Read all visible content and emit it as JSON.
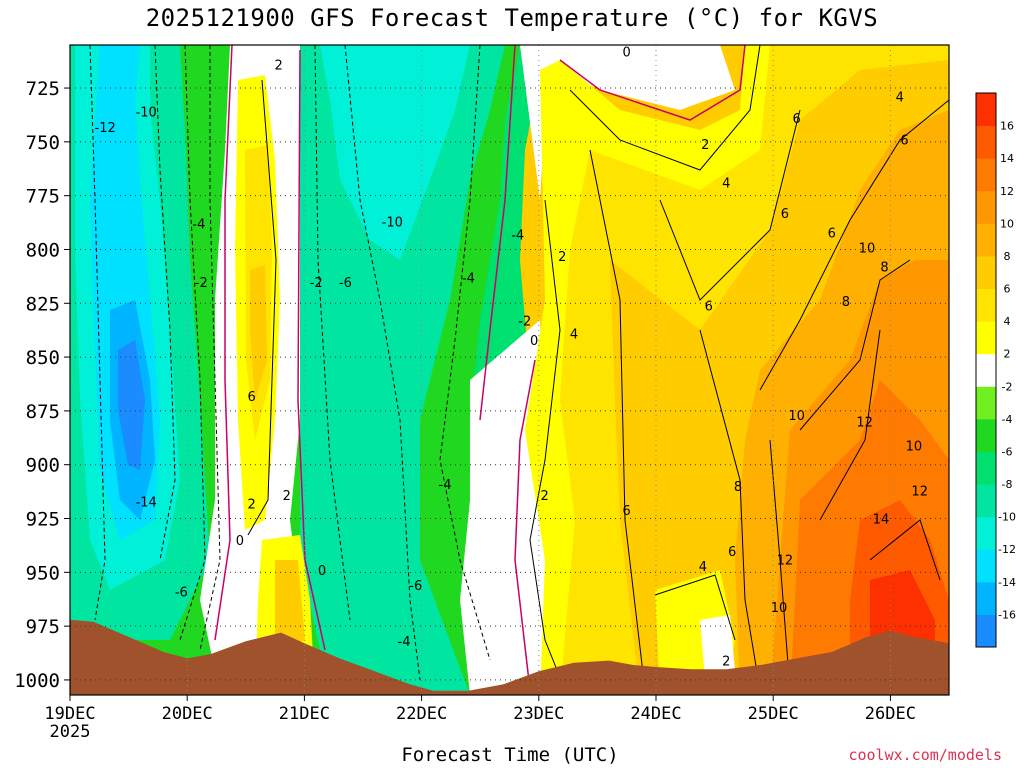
{
  "title": "2025121900 GFS Forecast Temperature (°C) for KGVS",
  "credit": "coolwx.com/models",
  "chart_data": {
    "type": "heatmap",
    "title": "2025121900 GFS Forecast Temperature (°C) for KGVS",
    "xlabel": "Forecast Time (UTC)",
    "ylabel": "",
    "x_ticks": [
      "19DEC",
      "20DEC",
      "21DEC",
      "22DEC",
      "23DEC",
      "24DEC",
      "25DEC",
      "26DEC"
    ],
    "x_tick_year": "2025",
    "xlim_days": [
      19,
      26.5
    ],
    "y_ticks": [
      725,
      750,
      775,
      800,
      825,
      850,
      875,
      900,
      925,
      950,
      975,
      1000
    ],
    "ylim": [
      1007,
      705
    ],
    "grid": true,
    "colorbar": {
      "levels": [
        -18,
        -16,
        -14,
        -12,
        -10,
        -8,
        -6,
        -4,
        -2,
        2,
        4,
        6,
        8,
        10,
        12,
        14,
        16,
        18
      ],
      "labels": [
        "-16",
        "-14",
        "-12",
        "-10",
        "-8",
        "-6",
        "-4",
        "-2",
        "2",
        "4",
        "6",
        "8",
        "10",
        "12",
        "14",
        "16"
      ],
      "colors": [
        "#1a8cff",
        "#00b4ff",
        "#00e0ff",
        "#00f0d8",
        "#00e6a0",
        "#00e070",
        "#20d820",
        "#70f020",
        "#ffffff",
        "#ffff00",
        "#ffe400",
        "#ffcc00",
        "#ffb000",
        "#ff9800",
        "#ff7a00",
        "#ff5a00",
        "#ff3000"
      ]
    },
    "surface_pressure": [
      {
        "day": 19.0,
        "p": 972
      },
      {
        "day": 19.2,
        "p": 973
      },
      {
        "day": 19.5,
        "p": 980
      },
      {
        "day": 19.8,
        "p": 987
      },
      {
        "day": 20.0,
        "p": 990
      },
      {
        "day": 20.2,
        "p": 988
      },
      {
        "day": 20.5,
        "p": 982
      },
      {
        "day": 20.8,
        "p": 978
      },
      {
        "day": 21.0,
        "p": 983
      },
      {
        "day": 21.3,
        "p": 990
      },
      {
        "day": 21.6,
        "p": 996
      },
      {
        "day": 21.9,
        "p": 1002
      },
      {
        "day": 22.1,
        "p": 1005
      },
      {
        "day": 22.4,
        "p": 1005
      },
      {
        "day": 22.7,
        "p": 1002
      },
      {
        "day": 23.0,
        "p": 996
      },
      {
        "day": 23.3,
        "p": 992
      },
      {
        "day": 23.6,
        "p": 991
      },
      {
        "day": 23.8,
        "p": 993
      },
      {
        "day": 24.0,
        "p": 994
      },
      {
        "day": 24.3,
        "p": 995
      },
      {
        "day": 24.6,
        "p": 995
      },
      {
        "day": 24.9,
        "p": 993
      },
      {
        "day": 25.2,
        "p": 990
      },
      {
        "day": 25.5,
        "p": 987
      },
      {
        "day": 25.8,
        "p": 980
      },
      {
        "day": 26.0,
        "p": 977
      },
      {
        "day": 26.2,
        "p": 980
      },
      {
        "day": 26.5,
        "p": 983
      }
    ],
    "contour_labels": [
      {
        "text": "-12",
        "day": 19.3,
        "p": 743
      },
      {
        "text": "-10",
        "day": 19.65,
        "p": 736
      },
      {
        "text": "-14",
        "day": 19.65,
        "p": 917
      },
      {
        "text": "-6",
        "day": 19.95,
        "p": 959
      },
      {
        "text": "-4",
        "day": 20.1,
        "p": 788
      },
      {
        "text": "-2",
        "day": 20.12,
        "p": 815
      },
      {
        "text": "0",
        "day": 20.45,
        "p": 935
      },
      {
        "text": "2",
        "day": 20.55,
        "p": 918
      },
      {
        "text": "6",
        "day": 20.55,
        "p": 868
      },
      {
        "text": "2",
        "day": 20.78,
        "p": 714
      },
      {
        "text": "2",
        "day": 20.85,
        "p": 914
      },
      {
        "text": "0",
        "day": 21.15,
        "p": 949
      },
      {
        "text": "-2",
        "day": 21.1,
        "p": 815
      },
      {
        "text": "-6",
        "day": 21.35,
        "p": 815
      },
      {
        "text": "-10",
        "day": 21.75,
        "p": 787
      },
      {
        "text": "-6",
        "day": 21.95,
        "p": 956
      },
      {
        "text": "-4",
        "day": 21.85,
        "p": 982
      },
      {
        "text": "-4",
        "day": 22.2,
        "p": 909
      },
      {
        "text": "-4",
        "day": 22.4,
        "p": 813
      },
      {
        "text": "-4",
        "day": 22.82,
        "p": 793
      },
      {
        "text": "-2",
        "day": 22.88,
        "p": 833
      },
      {
        "text": "0",
        "day": 22.96,
        "p": 842
      },
      {
        "text": "0",
        "day": 23.75,
        "p": 708
      },
      {
        "text": "2",
        "day": 23.2,
        "p": 803
      },
      {
        "text": "4",
        "day": 23.3,
        "p": 839
      },
      {
        "text": "2",
        "day": 23.05,
        "p": 914
      },
      {
        "text": "6",
        "day": 23.75,
        "p": 921
      },
      {
        "text": "2",
        "day": 24.42,
        "p": 751
      },
      {
        "text": "4",
        "day": 24.6,
        "p": 769
      },
      {
        "text": "6",
        "day": 24.45,
        "p": 826
      },
      {
        "text": "6",
        "day": 25.1,
        "p": 783
      },
      {
        "text": "6",
        "day": 25.2,
        "p": 739
      },
      {
        "text": "6",
        "day": 25.5,
        "p": 792
      },
      {
        "text": "4",
        "day": 24.4,
        "p": 947
      },
      {
        "text": "6",
        "day": 24.65,
        "p": 940
      },
      {
        "text": "8",
        "day": 24.7,
        "p": 910
      },
      {
        "text": "2",
        "day": 24.6,
        "p": 991
      },
      {
        "text": "10",
        "day": 25.2,
        "p": 877
      },
      {
        "text": "12",
        "day": 25.1,
        "p": 944
      },
      {
        "text": "10",
        "day": 25.05,
        "p": 966
      },
      {
        "text": "8",
        "day": 25.62,
        "p": 824
      },
      {
        "text": "10",
        "day": 25.8,
        "p": 799
      },
      {
        "text": "8",
        "day": 25.95,
        "p": 808
      },
      {
        "text": "12",
        "day": 25.78,
        "p": 880
      },
      {
        "text": "10",
        "day": 26.2,
        "p": 891
      },
      {
        "text": "12",
        "day": 26.25,
        "p": 912
      },
      {
        "text": "14",
        "day": 25.92,
        "p": 925
      },
      {
        "text": "4",
        "day": 26.08,
        "p": 729
      },
      {
        "text": "6",
        "day": 26.12,
        "p": 749
      }
    ]
  }
}
